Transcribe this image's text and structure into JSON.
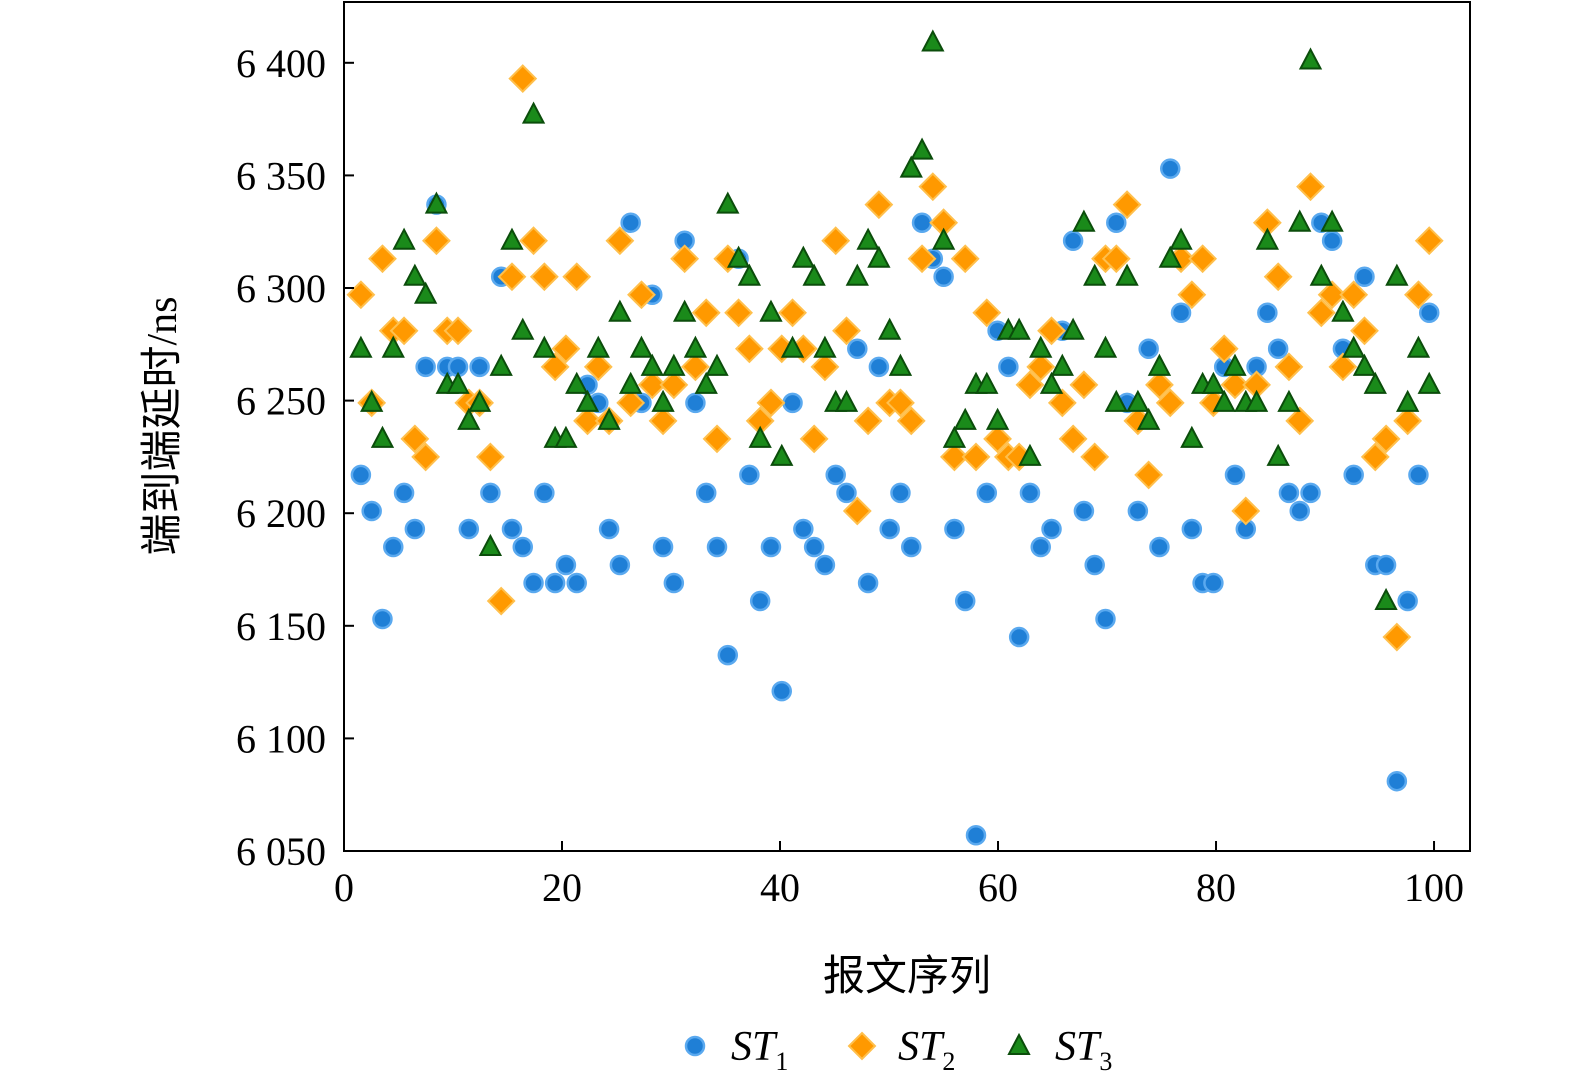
{
  "chart_data": {
    "type": "scatter",
    "title": "",
    "xlabel": "报文序列",
    "ylabel": "端到端延时/ns",
    "xlim": [
      0,
      103.3
    ],
    "ylim": [
      6050,
      6427
    ],
    "xticks": [
      0,
      20,
      40,
      60,
      80,
      100
    ],
    "xtick_labels": [
      "0",
      "20",
      "40",
      "60",
      "80",
      "100"
    ],
    "yticks": [
      6050,
      6100,
      6150,
      6200,
      6250,
      6300,
      6350,
      6400
    ],
    "ytick_labels": [
      "6 050",
      "6 100",
      "6 150",
      "6 200",
      "6 250",
      "6 300",
      "6 350",
      "6 400"
    ],
    "grid": false,
    "legend_position": "bottom",
    "series": [
      {
        "name": "ST1",
        "label_main": "ST",
        "label_sub": "1",
        "marker": "circle",
        "color": "#1f7fd6",
        "edge": "#5aa9ef",
        "values": [
          6217,
          6201,
          6153,
          6185,
          6209,
          6193,
          6265,
          6337,
          6265,
          6265,
          6193,
          6265,
          6209,
          6305,
          6193,
          6185,
          6169,
          6209,
          6169,
          6177,
          6169,
          6257,
          6249,
          6193,
          6177,
          6329,
          6249,
          6297,
          6185,
          6169,
          6321,
          6249,
          6209,
          6185,
          6137,
          6313,
          6217,
          6161,
          6185,
          6121,
          6249,
          6193,
          6185,
          6177,
          6217,
          6209,
          6273,
          6169,
          6265,
          6193,
          6209,
          6185,
          6329,
          6313,
          6305,
          6193,
          6161,
          6057,
          6209,
          6281,
          6265,
          6145,
          6209,
          6185,
          6193,
          6281,
          6321,
          6201,
          6177,
          6153,
          6329,
          6249,
          6201,
          6273,
          6185,
          6353,
          6289,
          6193,
          6169,
          6169,
          6265,
          6217,
          6193,
          6265,
          6289,
          6273,
          6209,
          6201,
          6209,
          6329,
          6321,
          6273,
          6217,
          6305,
          6177,
          6177,
          6081,
          6161,
          6217,
          6289
        ]
      },
      {
        "name": "ST2",
        "label_main": "ST",
        "label_sub": "2",
        "marker": "diamond",
        "color": "#ff9900",
        "edge": "#ffc04d",
        "values": [
          6297,
          6249,
          6313,
          6281,
          6281,
          6233,
          6225,
          6321,
          6281,
          6281,
          6249,
          6249,
          6225,
          6161,
          6305,
          6393,
          6321,
          6305,
          6265,
          6273,
          6305,
          6241,
          6265,
          6241,
          6321,
          6249,
          6297,
          6257,
          6241,
          6257,
          6313,
          6265,
          6289,
          6233,
          6313,
          6289,
          6273,
          6241,
          6249,
          6273,
          6289,
          6273,
          6233,
          6265,
          6321,
          6281,
          6201,
          6241,
          6337,
          6249,
          6249,
          6241,
          6313,
          6345,
          6329,
          6225,
          6313,
          6225,
          6289,
          6233,
          6225,
          6225,
          6257,
          6265,
          6281,
          6249,
          6233,
          6257,
          6225,
          6313,
          6313,
          6337,
          6241,
          6217,
          6257,
          6249,
          6313,
          6297,
          6313,
          6249,
          6273,
          6257,
          6201,
          6257,
          6329,
          6305,
          6265,
          6241,
          6345,
          6289,
          6297,
          6265,
          6297,
          6281,
          6225,
          6233,
          6145,
          6241,
          6297,
          6321
        ]
      },
      {
        "name": "ST3",
        "label_main": "ST",
        "label_sub": "3",
        "marker": "triangle",
        "color": "#1a8a1a",
        "edge": "#0b4d0b",
        "values": [
          6273,
          6249,
          6233,
          6273,
          6321,
          6305,
          6297,
          6337,
          6257,
          6257,
          6241,
          6249,
          6185,
          6265,
          6321,
          6281,
          6377,
          6273,
          6233,
          6233,
          6257,
          6249,
          6273,
          6241,
          6289,
          6257,
          6273,
          6265,
          6249,
          6265,
          6289,
          6273,
          6257,
          6265,
          6337,
          6313,
          6305,
          6233,
          6289,
          6225,
          6273,
          6313,
          6305,
          6273,
          6249,
          6249,
          6305,
          6321,
          6313,
          6281,
          6265,
          6353,
          6361,
          6409,
          6321,
          6233,
          6241,
          6257,
          6257,
          6241,
          6281,
          6281,
          6225,
          6273,
          6257,
          6265,
          6281,
          6329,
          6305,
          6273,
          6249,
          6305,
          6249,
          6241,
          6265,
          6313,
          6321,
          6233,
          6257,
          6257,
          6249,
          6265,
          6249,
          6249,
          6321,
          6225,
          6249,
          6329,
          6401,
          6305,
          6329,
          6289,
          6273,
          6265,
          6257,
          6161,
          6305,
          6249,
          6273,
          6257
        ]
      }
    ]
  }
}
